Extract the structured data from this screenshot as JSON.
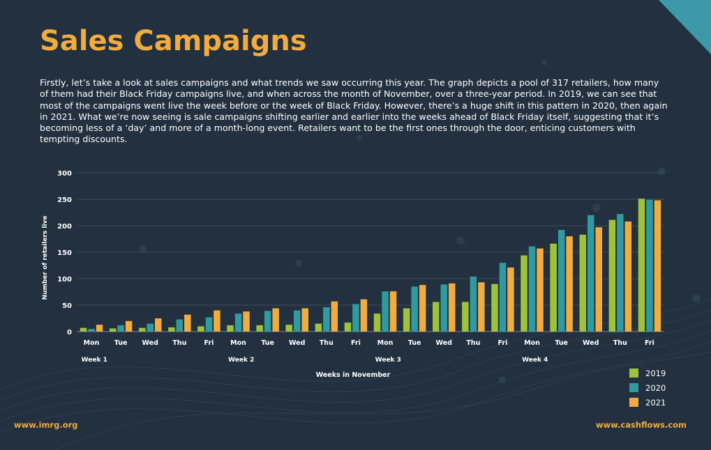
{
  "title": "Sales Campaigns",
  "intro": "Firstly, let’s take a look at sales campaigns and what trends we saw occurring this year. The graph depicts a pool of 317 retailers, how many of them had their Black Friday campaigns live, and when across the month of November, over a three-year period. In 2019, we can see that most of the campaigns went live the week before or the week of Black Friday. However, there’s a huge shift in this pattern in 2020, then again in 2021. What we’re now seeing is sale campaigns shifting earlier and earlier into the weeks ahead of Black Friday itself, suggesting that it’s becoming less of a ‘day’ and more of a month-long event. Retailers want to be the first ones through the door, enticing customers with tempting discounts.",
  "footer": {
    "left": "www.imrg.org",
    "right": "www.cashflows.com"
  },
  "colors": {
    "accent": "#f2ab3e",
    "background": "#22303f",
    "s2019": "#9dc33b",
    "s2020": "#2f9aa0",
    "s2021": "#f2ab3e"
  },
  "chart_data": {
    "type": "bar",
    "title": "",
    "xlabel": "Weeks in November",
    "ylabel": "Number of retailers live",
    "ylim": [
      0,
      300
    ],
    "yticks": [
      0,
      50,
      100,
      150,
      200,
      250,
      300
    ],
    "grid": true,
    "legend_position": "bottom-right",
    "categories": [
      "Mon",
      "Tue",
      "Wed",
      "Thu",
      "Fri",
      "Mon",
      "Tue",
      "Wed",
      "Thu",
      "Fri",
      "Mon",
      "Tue",
      "Wed",
      "Thu",
      "Fri",
      "Mon",
      "Tue",
      "Wed",
      "Thu",
      "Fri"
    ],
    "groups": [
      {
        "label": "Week 1",
        "start": 0
      },
      {
        "label": "Week 2",
        "start": 5
      },
      {
        "label": "Week 3",
        "start": 10
      },
      {
        "label": "Week 4",
        "start": 15
      }
    ],
    "series": [
      {
        "name": "2019",
        "color": "#9dc33b",
        "values": [
          7,
          6,
          7,
          8,
          10,
          12,
          12,
          13,
          15,
          17,
          34,
          44,
          56,
          56,
          90,
          144,
          166,
          183,
          211,
          251
        ]
      },
      {
        "name": "2020",
        "color": "#2f9aa0",
        "values": [
          5,
          12,
          15,
          23,
          27,
          34,
          39,
          40,
          46,
          52,
          76,
          85,
          89,
          104,
          130,
          161,
          192,
          220,
          222,
          249
        ]
      },
      {
        "name": "2021",
        "color": "#f2ab3e",
        "values": [
          13,
          20,
          25,
          32,
          40,
          38,
          44,
          44,
          57,
          61,
          76,
          88,
          91,
          93,
          121,
          157,
          180,
          197,
          208,
          248
        ]
      }
    ]
  }
}
